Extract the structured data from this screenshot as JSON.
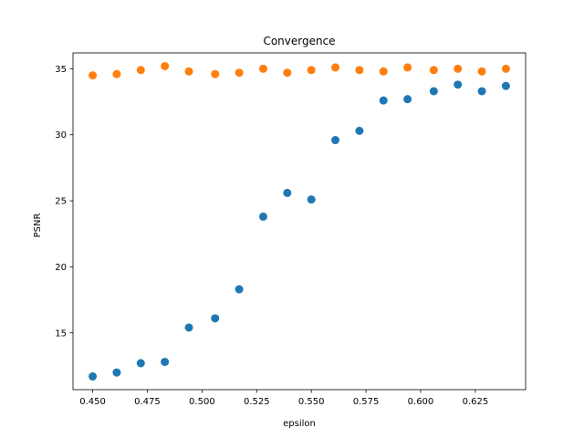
{
  "chart_data": {
    "type": "scatter",
    "title": "Convergence",
    "xlabel": "epsilon",
    "ylabel": "PSNR",
    "xlim": [
      0.441,
      0.648
    ],
    "ylim": [
      10.7,
      36.2
    ],
    "xticks": [
      0.45,
      0.475,
      0.5,
      0.525,
      0.55,
      0.575,
      0.6,
      0.625
    ],
    "xtick_labels": [
      "0.450",
      "0.475",
      "0.500",
      "0.525",
      "0.550",
      "0.575",
      "0.600",
      "0.625"
    ],
    "yticks": [
      15,
      20,
      25,
      30,
      35
    ],
    "ytick_labels": [
      "15",
      "20",
      "25",
      "30",
      "35"
    ],
    "grid": false,
    "series": [
      {
        "color": "#1f77b4",
        "x": [
          0.45,
          0.461,
          0.472,
          0.483,
          0.494,
          0.506,
          0.517,
          0.528,
          0.539,
          0.55,
          0.561,
          0.572,
          0.583,
          0.594,
          0.606,
          0.617,
          0.628,
          0.639
        ],
        "y": [
          11.7,
          12.0,
          12.7,
          12.8,
          15.4,
          16.1,
          18.3,
          23.8,
          25.6,
          25.1,
          29.6,
          30.3,
          32.6,
          32.7,
          33.3,
          33.8,
          33.3,
          33.7
        ]
      },
      {
        "color": "#ff7f0e",
        "x": [
          0.45,
          0.461,
          0.472,
          0.483,
          0.494,
          0.506,
          0.517,
          0.528,
          0.539,
          0.55,
          0.561,
          0.572,
          0.583,
          0.594,
          0.606,
          0.617,
          0.628,
          0.639
        ],
        "y": [
          34.5,
          34.6,
          34.9,
          35.2,
          34.8,
          34.6,
          34.7,
          35.0,
          34.7,
          34.9,
          35.1,
          34.9,
          34.8,
          35.1,
          34.9,
          35.0,
          34.8,
          35.0
        ]
      }
    ]
  }
}
